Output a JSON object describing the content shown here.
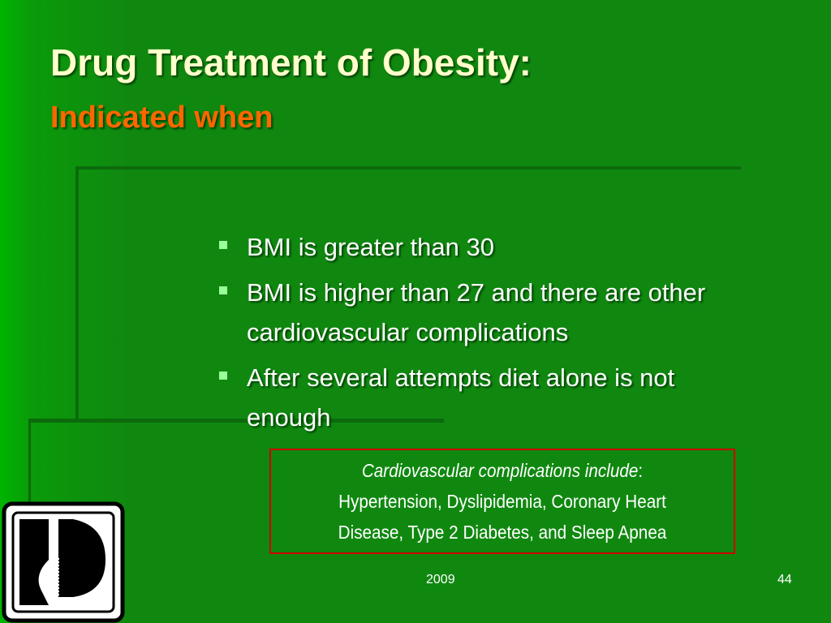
{
  "header": {
    "title": "Drug Treatment of Obesity:",
    "subtitle": "Indicated when"
  },
  "bullets": [
    "BMI is greater than 30",
    "BMI is higher than 27 and there are other cardiovascular complications",
    "After several attempts diet alone is not enough"
  ],
  "note": {
    "lead": "Cardiovascular complications include",
    "colon": ":",
    "lines": [
      "Hypertension, Dyslipidemia, Coronary Heart",
      "Disease, Type 2 Diabetes, and Sleep Apnea"
    ]
  },
  "footer": {
    "date": "2009",
    "page": "44"
  }
}
